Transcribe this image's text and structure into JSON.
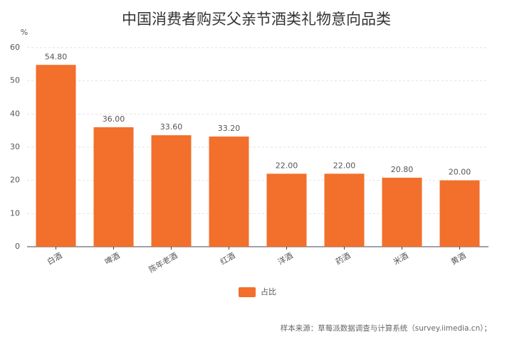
{
  "chart_data": {
    "type": "bar",
    "title": "中国消费者购买父亲节酒类礼物意向品类",
    "y_axis_label": "%",
    "categories": [
      "白酒",
      "啤酒",
      "陈年老酒",
      "红酒",
      "洋酒",
      "药酒",
      "米酒",
      "黄酒"
    ],
    "series": [
      {
        "name": "占比",
        "color": "#f26f2c",
        "values": [
          54.8,
          36,
          33.6,
          33.2,
          22,
          22,
          20.8,
          20
        ],
        "value_labels": [
          "54.80",
          "36.00",
          "33.60",
          "33.20",
          "22.00",
          "22.00",
          "20.80",
          "20.00"
        ]
      }
    ],
    "ylim": [
      0,
      60
    ],
    "yticks": [
      0,
      10,
      20,
      30,
      40,
      50,
      60
    ],
    "grid": true,
    "legend": "bottom",
    "source": "样本来源：草莓派数据调查与计算系统（survey.iimedia.cn）；"
  }
}
